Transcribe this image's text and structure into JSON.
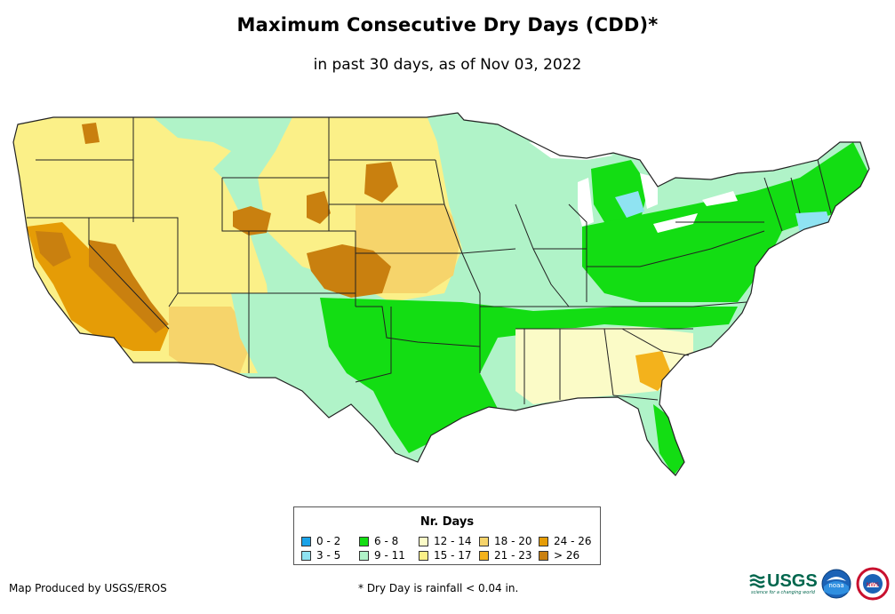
{
  "title": "Maximum Consecutive Dry Days (CDD)*",
  "subtitle": "in past 30 days, as of Nov 03, 2022",
  "legend": {
    "title": "Nr. Days",
    "items": [
      {
        "label": "0 - 2",
        "color": "#1aa3e8"
      },
      {
        "label": "3 - 5",
        "color": "#8fe3f2"
      },
      {
        "label": "6 - 8",
        "color": "#13dd13"
      },
      {
        "label": "9 - 11",
        "color": "#b0f3c8"
      },
      {
        "label": "12 - 14",
        "color": "#fbfbc7"
      },
      {
        "label": "15 - 17",
        "color": "#fbf088"
      },
      {
        "label": "18 - 20",
        "color": "#f6d46b"
      },
      {
        "label": "21 - 23",
        "color": "#f3b21c"
      },
      {
        "label": "24 - 26",
        "color": "#e59c06"
      },
      {
        "label": "> 26",
        "color": "#c9800f"
      }
    ]
  },
  "credit": "Map Produced by USGS/EROS",
  "footnote": "* Dry Day is rainfall < 0.04 in.",
  "logos": {
    "usgs": "USGS",
    "usgs_tagline": "science for a changing world",
    "noaa": "noaa",
    "nws": "NWS"
  }
}
